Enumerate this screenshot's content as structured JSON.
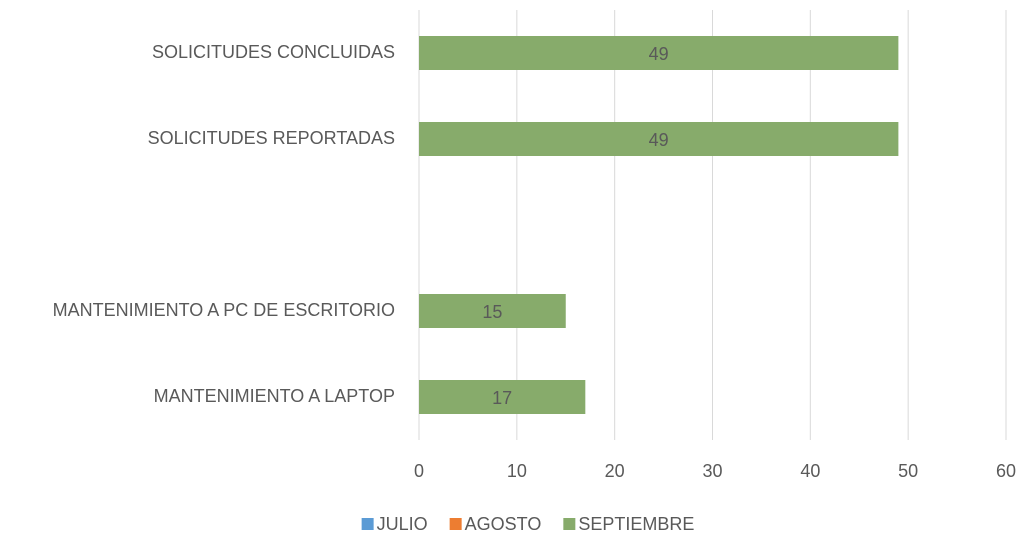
{
  "chart_data": {
    "type": "barh",
    "categories": [
      "SOLICITUDES CONCLUIDAS",
      "SOLICITUDES REPORTADAS",
      null,
      "MANTENIMIENTO A PC DE ESCRITORIO",
      "MANTENIMIENTO A LAPTOP"
    ],
    "series": [
      {
        "name": "JULIO",
        "color": "#5b9bd5",
        "values": [
          null,
          null,
          null,
          null,
          null
        ]
      },
      {
        "name": "AGOSTO",
        "color": "#ed7d31",
        "values": [
          null,
          null,
          null,
          null,
          null
        ]
      },
      {
        "name": "SEPTIEMBRE",
        "color": "#87ab6b",
        "values": [
          49,
          49,
          null,
          15,
          17
        ]
      }
    ],
    "xlim": [
      0,
      60
    ],
    "xticks": [
      0,
      10,
      20,
      30,
      40,
      50,
      60
    ],
    "grid": true,
    "legend": "bottom"
  }
}
